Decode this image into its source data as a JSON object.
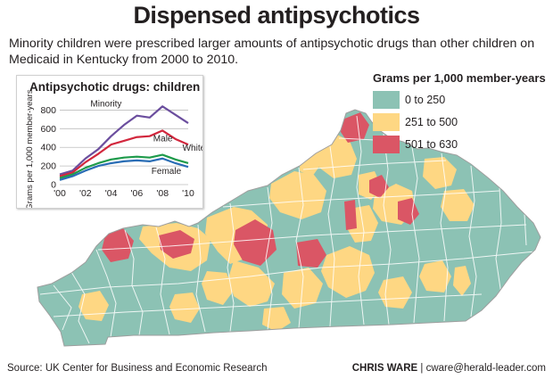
{
  "header": {
    "title": "Dispensed antipsychotics",
    "subtitle": "Minority children were prescribed larger amounts of antipsychotic drugs than other children on Medicaid in Kentucky from 2000 to 2010."
  },
  "legend": {
    "title": "Grams per 1,000 member-years",
    "items": [
      {
        "label": "0 to 250",
        "color": "#8cc2b4"
      },
      {
        "label": "251 to 500",
        "color": "#fed783"
      },
      {
        "label": "501 to 630",
        "color": "#da5665"
      }
    ]
  },
  "chart_data": {
    "type": "line",
    "title": "Antipsychotic drugs: children",
    "ylabel": "Grams per 1,000 member-years",
    "x": [
      2000,
      2001,
      2002,
      2003,
      2004,
      2005,
      2006,
      2007,
      2008,
      2009,
      2010
    ],
    "xticks": [
      "'00",
      "'02",
      "'04",
      "'06",
      "'08",
      "'10"
    ],
    "yticks": [
      0,
      200,
      400,
      600,
      800
    ],
    "ylim": [
      0,
      900
    ],
    "grid": true,
    "series": [
      {
        "name": "Minority",
        "color": "#6b4e9e",
        "values": [
          110,
          150,
          280,
          380,
          520,
          640,
          740,
          720,
          840,
          750,
          660
        ]
      },
      {
        "name": "Male",
        "color": "#d2273d",
        "values": [
          90,
          130,
          240,
          330,
          430,
          470,
          510,
          520,
          580,
          490,
          430
        ]
      },
      {
        "name": "White",
        "color": "#1f9b4b",
        "values": [
          70,
          110,
          180,
          230,
          270,
          290,
          300,
          290,
          320,
          270,
          230
        ]
      },
      {
        "name": "Female",
        "color": "#2a6db5",
        "values": [
          50,
          90,
          150,
          200,
          230,
          250,
          260,
          250,
          280,
          230,
          190
        ]
      }
    ]
  },
  "footer": {
    "source": "Source: UK Center for Business and Economic Research",
    "credit_name": "CHRIS WARE",
    "credit_contact": "| cware@herald-leader.com"
  }
}
